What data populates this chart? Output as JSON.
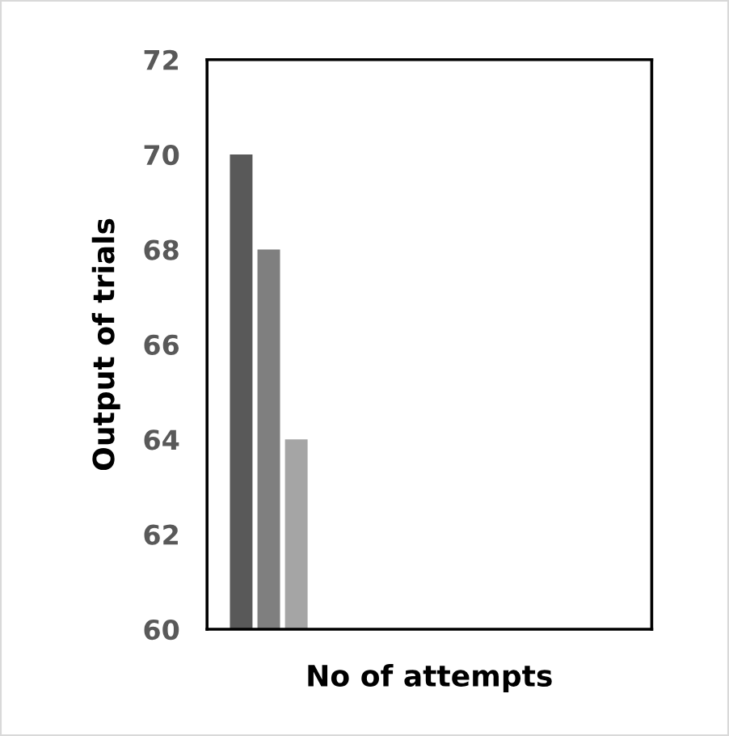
{
  "chart_data": {
    "type": "bar",
    "xlabel": "No of attempts",
    "ylabel": "Output of trials",
    "categories": [
      null,
      null,
      null
    ],
    "values": [
      70,
      68,
      64
    ],
    "colors": [
      "#595959",
      "#7f7f7f",
      "#a5a5a5"
    ],
    "ylim": [
      60,
      72
    ],
    "yticks": [
      60,
      62,
      64,
      66,
      68,
      70,
      72
    ],
    "grid": false,
    "legend": false
  }
}
